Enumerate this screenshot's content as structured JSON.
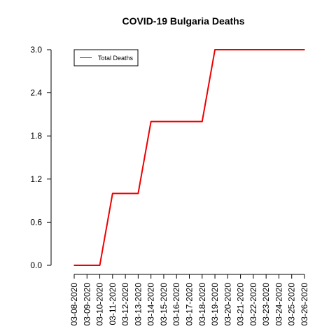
{
  "chart_data": {
    "type": "line",
    "title": "COVID-19 Bulgaria Deaths",
    "xlabel": "",
    "ylabel": "",
    "categories": [
      "03-08-2020",
      "03-09-2020",
      "03-10-2020",
      "03-11-2020",
      "03-12-2020",
      "03-13-2020",
      "03-14-2020",
      "03-15-2020",
      "03-16-2020",
      "03-17-2020",
      "03-18-2020",
      "03-19-2020",
      "03-20-2020",
      "03-21-2020",
      "03-22-2020",
      "03-23-2020",
      "03-24-2020",
      "03-25-2020",
      "03-26-2020"
    ],
    "series": [
      {
        "name": "Total Deaths",
        "color": "#ee0000",
        "values": [
          0,
          0,
          0,
          1,
          1,
          1,
          2,
          2,
          2,
          2,
          2,
          3,
          3,
          3,
          3,
          3,
          3,
          3,
          3
        ]
      }
    ],
    "ylim": [
      0,
      3
    ],
    "yticks": [
      "0.0",
      "0.6",
      "1.2",
      "1.8",
      "2.4",
      "3.0"
    ],
    "legend_position": "top-left",
    "grid": false
  }
}
